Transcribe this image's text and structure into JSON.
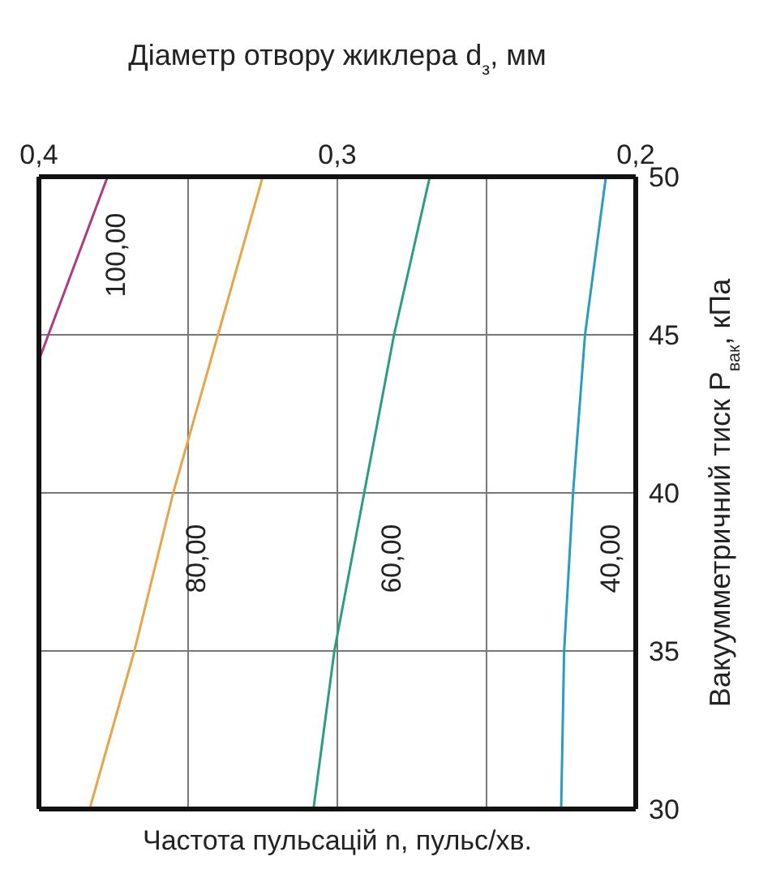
{
  "chart_data": {
    "type": "line",
    "xlabel": "Діаметр отвору жиклера d$_{з}$, мм",
    "ylabel": "Вакуумметричний тиск P$_{вак}$, кПа",
    "annotations": [
      "Частота пульсацій n, пульс/хв."
    ],
    "xlim": [
      0.4,
      0.2
    ],
    "xticks": [
      {
        "value": 0.4,
        "label": "0,4"
      },
      {
        "value": 0.35,
        "label": null
      },
      {
        "value": 0.3,
        "label": "0,3"
      },
      {
        "value": 0.25,
        "label": null
      },
      {
        "value": 0.2,
        "label": "0,2"
      }
    ],
    "ylim": [
      30,
      50
    ],
    "yticks": [
      30,
      35,
      40,
      45,
      50
    ],
    "grid": true,
    "series": [
      {
        "name": "100,00",
        "color": "#b03a80",
        "x": [
          0.4,
          0.377
        ],
        "values": [
          44.2,
          50
        ]
      },
      {
        "name": "80,00",
        "color": "#e8a448",
        "x": [
          0.383,
          0.368,
          0.355,
          0.34,
          0.325
        ],
        "values": [
          30,
          35,
          40,
          45,
          50
        ]
      },
      {
        "name": "60,00",
        "color": "#2a9f80",
        "x": [
          0.308,
          0.301,
          0.291,
          0.281,
          0.269
        ],
        "values": [
          30,
          35,
          40,
          45,
          50
        ]
      },
      {
        "name": "40,00",
        "color": "#2a9cc0",
        "x": [
          0.225,
          0.224,
          0.221,
          0.217,
          0.21
        ],
        "values": [
          30,
          35,
          40,
          45,
          50
        ]
      }
    ]
  }
}
